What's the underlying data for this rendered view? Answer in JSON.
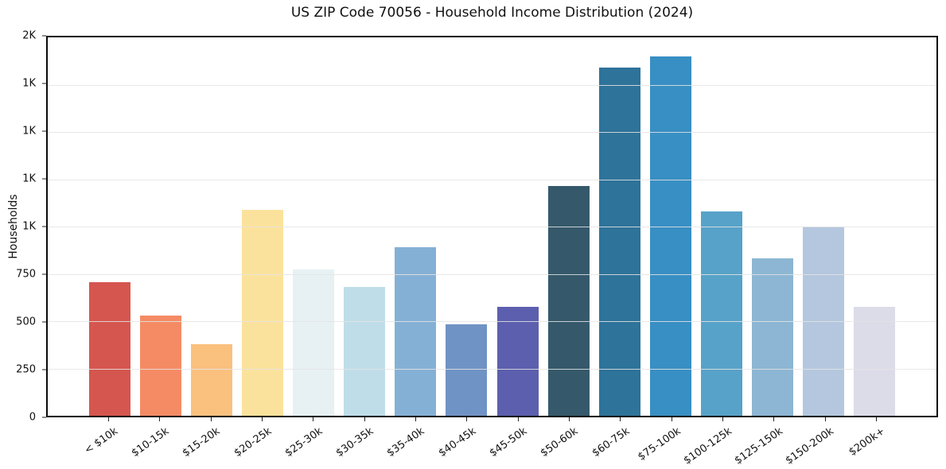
{
  "figure": {
    "title": "US ZIP Code 70056 - Household Income Distribution (2024)"
  },
  "chart_data": {
    "type": "bar",
    "title": "US ZIP Code 70056 - Household Income Distribution (2024)",
    "xlabel": "",
    "ylabel": "Households",
    "ylim": [
      0,
      2000
    ],
    "grid": "horizontal-light",
    "legend_position": "none",
    "categories": [
      "< $10k",
      "$10-15k",
      "$15-20k",
      "$20-25k",
      "$25-30k",
      "$30-35k",
      "$35-40k",
      "$40-45k",
      "$45-50k",
      "$50-60k",
      "$60-75k",
      "$75-100k",
      "$100-125k",
      "$125-150k",
      "$150-200k",
      "$200k+"
    ],
    "values": [
      705,
      530,
      380,
      1090,
      775,
      680,
      890,
      485,
      575,
      1215,
      1840,
      1900,
      1080,
      830,
      1000,
      575
    ],
    "bar_colors": [
      "#d5564e",
      "#f58b64",
      "#fac07e",
      "#fbe29c",
      "#e7f1f4",
      "#bfdde9",
      "#85b0d5",
      "#7093c5",
      "#5c5fae",
      "#35596b",
      "#2e739a",
      "#388fc3",
      "#57a2c8",
      "#8cb6d3",
      "#b4c7de",
      "#dcdbe8"
    ],
    "yticks": [
      {
        "value": 0,
        "label": "0"
      },
      {
        "value": 250,
        "label": "250"
      },
      {
        "value": 500,
        "label": "500"
      },
      {
        "value": 750,
        "label": "750"
      },
      {
        "value": 1000,
        "label": "1K"
      },
      {
        "value": 1250,
        "label": "1K"
      },
      {
        "value": 1500,
        "label": "1K"
      },
      {
        "value": 1750,
        "label": "1K"
      },
      {
        "value": 2000,
        "label": "2K"
      }
    ]
  },
  "colors": {
    "background": "#ffffff",
    "spine": "#0a0a0a",
    "gridline": "#e4e4e4",
    "text": "#111111"
  }
}
